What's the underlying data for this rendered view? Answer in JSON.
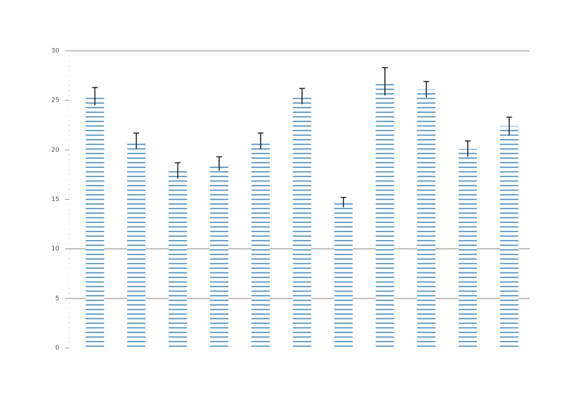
{
  "chart_data": {
    "type": "bar",
    "categories": [
      null,
      null,
      null,
      null,
      null,
      null,
      null,
      null,
      null,
      null,
      null
    ],
    "values": [
      25.4,
      20.9,
      17.9,
      18.6,
      20.9,
      25.4,
      14.7,
      26.9,
      26.1,
      20.1,
      22.4
    ],
    "errors": [
      0.9,
      0.8,
      0.8,
      0.7,
      0.8,
      0.8,
      0.5,
      1.4,
      0.8,
      0.8,
      0.9
    ],
    "color": "#4a8ab8",
    "ylim": [
      0,
      30
    ],
    "yticks": [
      0,
      5,
      10,
      15,
      20,
      25,
      30
    ],
    "grid_lines": [
      5,
      10,
      30
    ]
  }
}
